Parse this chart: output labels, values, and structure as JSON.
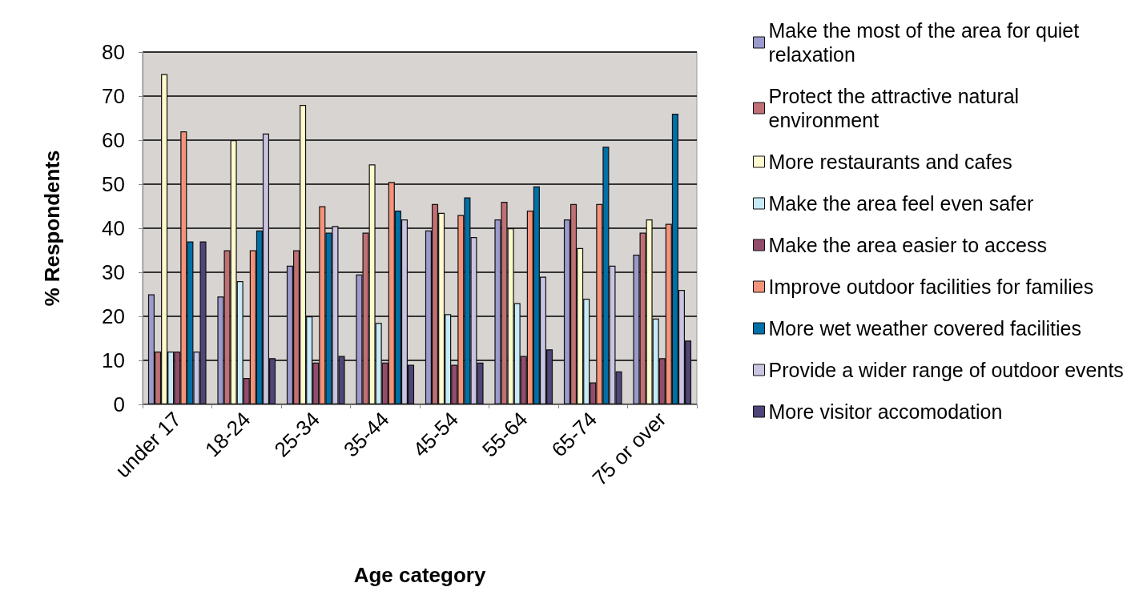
{
  "chart_data": {
    "type": "bar",
    "xlabel": "Age category",
    "ylabel": "% Respondents",
    "categories": [
      "under 17",
      "18-24",
      "25-34",
      "35-44",
      "45-54",
      "55-64",
      "65-74",
      "75 or over"
    ],
    "series": [
      {
        "name": "Make the most of the area for quiet relaxation",
        "color": "#9c99cc",
        "values": [
          25,
          24.5,
          31.5,
          29.5,
          39.5,
          42,
          42,
          34
        ]
      },
      {
        "name": "Protect the attractive natural environment",
        "color": "#c07074",
        "values": [
          12,
          35,
          35,
          39,
          45.5,
          46,
          45.5,
          39
        ]
      },
      {
        "name": "More restaurants and cafes",
        "color": "#fffacd",
        "values": [
          75,
          60,
          68,
          54.5,
          43.5,
          40,
          35.5,
          42
        ]
      },
      {
        "name": "Make the area feel even safer",
        "color": "#c6eaf8",
        "values": [
          12,
          28,
          20,
          18.5,
          20.5,
          23,
          24,
          19.5
        ]
      },
      {
        "name": "Make the area easier to access",
        "color": "#934c6c",
        "values": [
          12,
          6,
          9.5,
          9.5,
          9,
          11,
          5,
          10.5
        ]
      },
      {
        "name": "Improve outdoor facilities for families",
        "color": "#f4937a",
        "values": [
          62,
          35,
          45,
          50.5,
          43,
          44,
          45.5,
          41
        ]
      },
      {
        "name": "More wet weather covered facilities",
        "color": "#0070a8",
        "values": [
          37,
          39.5,
          39,
          44,
          47,
          49.5,
          58.5,
          66
        ]
      },
      {
        "name": "Provide a wider range of outdoor events",
        "color": "#c8c4e2",
        "values": [
          12,
          61.5,
          40.5,
          42,
          38,
          29,
          31.5,
          26
        ]
      },
      {
        "name": "More visitor accomodation",
        "color": "#4f4578",
        "values": [
          37,
          10.5,
          11,
          9,
          9.5,
          12.5,
          7.5,
          14.5
        ]
      }
    ],
    "ylim": [
      0,
      80
    ],
    "yticks": [
      0,
      10,
      20,
      30,
      40,
      50,
      60,
      70,
      80
    ],
    "grid": "y",
    "legend": "right"
  }
}
